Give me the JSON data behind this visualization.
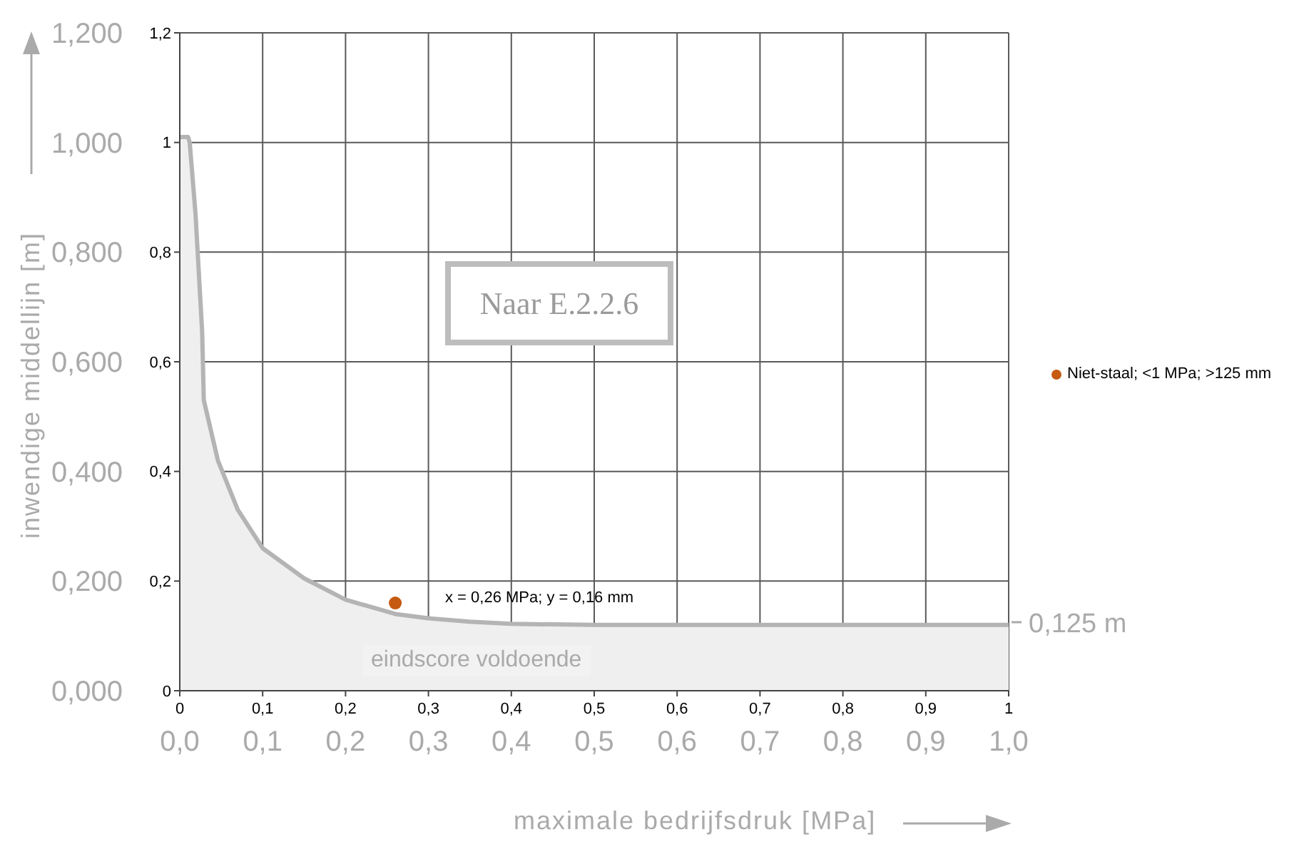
{
  "chart_data": {
    "type": "area",
    "xlabel": "maximale bedrijfsdruk [MPa]",
    "ylabel": "inwendige middellijn [m]",
    "xlim": [
      0,
      1
    ],
    "xticks": [
      {
        "value": 0,
        "label": "0"
      },
      {
        "value": 0.1,
        "label": "0,1"
      },
      {
        "value": 0.2,
        "label": "0,2"
      },
      {
        "value": 0.3,
        "label": "0,3"
      },
      {
        "value": 0.4,
        "label": "0,4"
      },
      {
        "value": 0.5,
        "label": "0,5"
      },
      {
        "value": 0.6,
        "label": "0,6"
      },
      {
        "value": 0.7,
        "label": "0,7"
      },
      {
        "value": 0.8,
        "label": "0,8"
      },
      {
        "value": 0.9,
        "label": "0,9"
      },
      1
    ],
    "x2lim": [
      0,
      1
    ],
    "x2ticks": [
      {
        "value": 0,
        "label": "0,0"
      },
      {
        "value": 0.1,
        "label": "0,1"
      },
      {
        "value": 0.2,
        "label": "0,2"
      },
      {
        "value": 0.3,
        "label": "0,3"
      },
      {
        "value": 0.4,
        "label": "0,4"
      },
      {
        "value": 0.5,
        "label": "0,5"
      },
      {
        "value": 0.6,
        "label": "0,6"
      },
      {
        "value": 0.7,
        "label": "0,7"
      },
      {
        "value": 0.8,
        "label": "0,8"
      },
      {
        "value": 0.9,
        "label": "0,9"
      },
      {
        "value": 1,
        "label": "1,0"
      }
    ],
    "ylim": [
      0,
      1.2
    ],
    "yticks": [
      {
        "value": 0,
        "label": "0,000"
      },
      {
        "value": 0.2,
        "label": "0,200"
      },
      {
        "value": 0.4,
        "label": "0,400"
      },
      {
        "value": 0.6,
        "label": "0,600"
      },
      {
        "value": 0.8,
        "label": "0,800"
      },
      {
        "value": 1,
        "label": "1,000"
      },
      {
        "value": 1.2,
        "label": "1,200"
      }
    ],
    "y2lim": [
      0,
      1.2
    ],
    "y2ticks": [
      {
        "value": 0,
        "label": "0"
      },
      {
        "value": 0.2,
        "label": "0,2"
      },
      {
        "value": 0.4,
        "label": "0,4"
      },
      {
        "value": 0.6,
        "label": "0,6"
      },
      {
        "value": 0.8,
        "label": "0,8"
      },
      1,
      {
        "value": 1.2,
        "label": "1,2"
      }
    ],
    "grid": true,
    "legend": "right",
    "series": [
      {
        "color": "#b4b4b4",
        "x": [
          0,
          0.01,
          0.012,
          0.019,
          0.027,
          0.029,
          0.046,
          0.07,
          0.1,
          0.15,
          0.2,
          0.26,
          0.3,
          0.35,
          0.4,
          0.5,
          0.7,
          1
        ],
        "values": [
          1.01,
          1.01,
          1.0,
          0.87,
          0.655,
          0.53,
          0.42,
          0.33,
          0.26,
          0.205,
          0.166,
          0.14,
          0.132,
          0.126,
          0.122,
          0.12,
          0.12,
          0.12
        ]
      },
      {
        "type": "scatter",
        "name": "Niet-staal; <1 MPa; >125 mm",
        "color": "#c55a11",
        "marker": "circle",
        "x": [
          0.26
        ],
        "values": [
          0.16
        ]
      }
    ],
    "annotations": [
      "x = 0,26 MPa; y = 0,16 mm",
      {
        "text": "0,125 m",
        "x": 1,
        "y": 0.125
      },
      "Naar E.2.2.6",
      "eindscore voldoende"
    ]
  }
}
